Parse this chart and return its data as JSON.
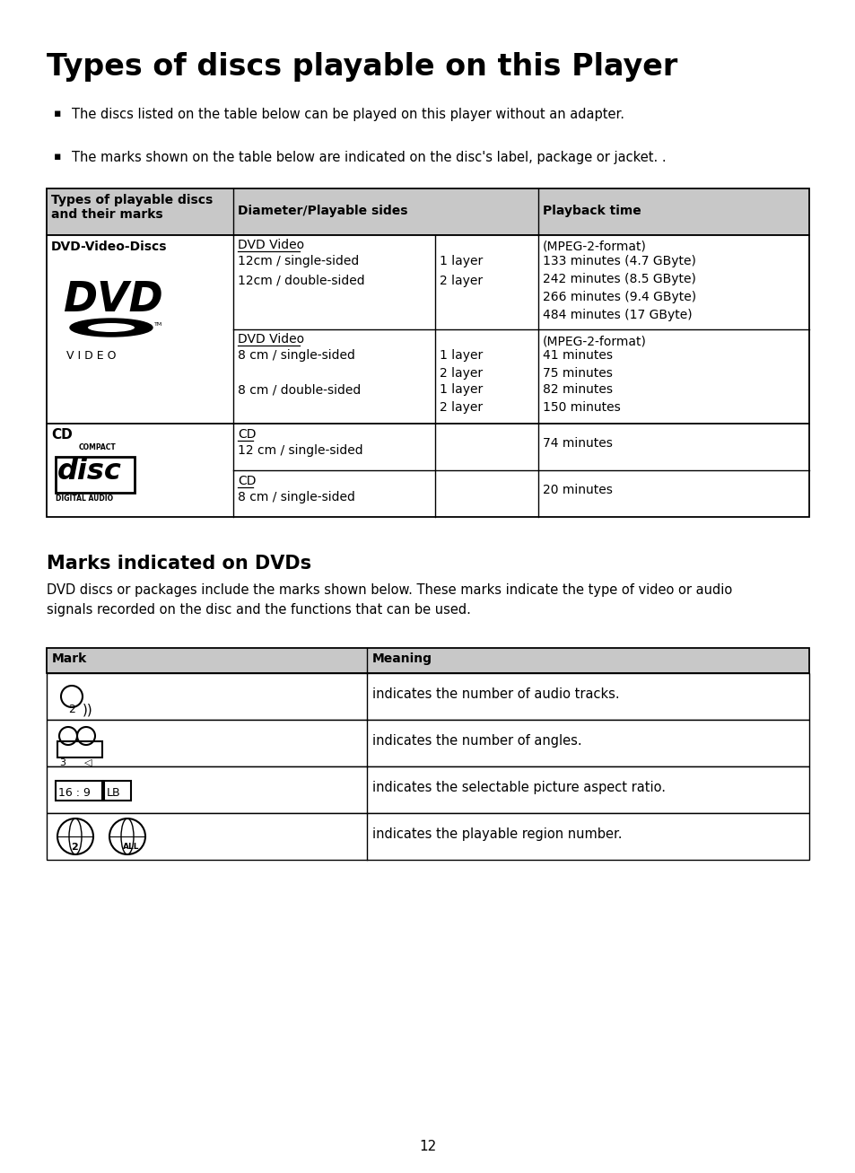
{
  "title": "Types of discs playable on this Player",
  "bullet1": "The discs listed on the table below can be played on this player without an adapter.",
  "bullet2": "The marks shown on the table below are indicated on the disc's label, package or jacket. .",
  "section2_title": "Marks indicated on DVDs",
  "section2_body": "DVD discs or packages include the marks shown below. These marks indicate the type of video or audio\nsignals recorded on the disc and the functions that can be used.",
  "table2_meanings": [
    "indicates the number of audio tracks.",
    "indicates the number of angles.",
    "indicates the selectable picture aspect ratio.",
    "indicates the playable region number."
  ],
  "page_number": "12",
  "bg_color": "#ffffff",
  "header_bg": "#c8c8c8"
}
